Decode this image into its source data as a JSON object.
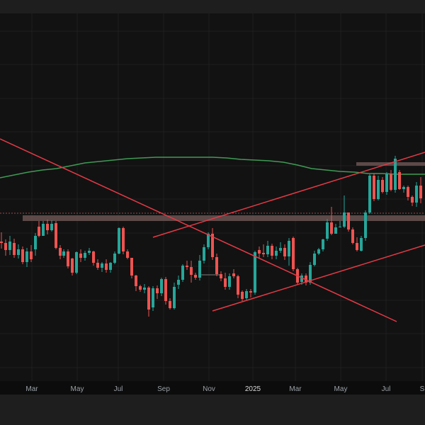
{
  "colors": {
    "background": "#121212",
    "grid": "#1f1f1f",
    "up_candle": "#26a69a",
    "down_candle": "#ef5350",
    "trendline": "#e53945",
    "moving_average": "#3f9a55",
    "zone": "#6a5352"
  },
  "chart_data": {
    "type": "candlestick",
    "x_axis_labels": [
      "Mar",
      "May",
      "Jul",
      "Sep",
      "Nov",
      "2025",
      "Mar",
      "May",
      "Jul",
      "S"
    ],
    "y_axis_labels": [],
    "grid": true,
    "legend": "none",
    "price_range": [
      0,
      560
    ],
    "x_range": [
      0,
      600
    ],
    "candles": [
      [
        2,
        341,
        343,
        328,
        351
      ],
      [
        8,
        343,
        353,
        338,
        361
      ],
      [
        14,
        353,
        341,
        333,
        360
      ],
      [
        20,
        343,
        360,
        337,
        364
      ],
      [
        26,
        360,
        352,
        345,
        365
      ],
      [
        32,
        352,
        370,
        348,
        373
      ],
      [
        38,
        370,
        355,
        350,
        377
      ],
      [
        44,
        355,
        366,
        346,
        370
      ],
      [
        50,
        352,
        333,
        329,
        361
      ],
      [
        55,
        320,
        333,
        312,
        335
      ],
      [
        61,
        333,
        316,
        312,
        333
      ],
      [
        67,
        316,
        325,
        310,
        331
      ],
      [
        73,
        325,
        316,
        311,
        327
      ],
      [
        79,
        315,
        350,
        312,
        352
      ],
      [
        85,
        350,
        361,
        346,
        366
      ],
      [
        90,
        361,
        355,
        352,
        364
      ],
      [
        96,
        355,
        376,
        352,
        379
      ],
      [
        102,
        365,
        385,
        364,
        389
      ],
      [
        108,
        385,
        356,
        355,
        387
      ],
      [
        114,
        358,
        364,
        352,
        370
      ],
      [
        120,
        364,
        357,
        354,
        368
      ],
      [
        126,
        357,
        354,
        350,
        360
      ],
      [
        132,
        355,
        371,
        354,
        375
      ],
      [
        138,
        371,
        378,
        366,
        381
      ],
      [
        144,
        378,
        372,
        370,
        384
      ],
      [
        150,
        372,
        381,
        366,
        385
      ],
      [
        156,
        381,
        371,
        370,
        385
      ],
      [
        162,
        371,
        358,
        355,
        373
      ],
      [
        168,
        358,
        322,
        321,
        359
      ],
      [
        174,
        322,
        355,
        320,
        359
      ],
      [
        180,
        355,
        364,
        352,
        366
      ],
      [
        186,
        364,
        389,
        364,
        393
      ],
      [
        192,
        389,
        404,
        388,
        411
      ],
      [
        198,
        404,
        409,
        402,
        412
      ],
      [
        204,
        409,
        406,
        401,
        414
      ],
      [
        210,
        406,
        437,
        404,
        447
      ],
      [
        216,
        434,
        407,
        404,
        439
      ],
      [
        222,
        407,
        414,
        403,
        422
      ],
      [
        228,
        414,
        394,
        392,
        418
      ],
      [
        234,
        394,
        425,
        391,
        430
      ],
      [
        240,
        425,
        435,
        421,
        437
      ],
      [
        246,
        435,
        405,
        399,
        437
      ],
      [
        252,
        402,
        395,
        389,
        408
      ],
      [
        258,
        395,
        375,
        373,
        398
      ],
      [
        264,
        375,
        377,
        368,
        381
      ],
      [
        270,
        377,
        388,
        368,
        399
      ],
      [
        276,
        388,
        392,
        385,
        395
      ],
      [
        282,
        392,
        368,
        360,
        396
      ],
      [
        288,
        368,
        349,
        345,
        372
      ],
      [
        294,
        349,
        330,
        328,
        352
      ],
      [
        300,
        330,
        363,
        322,
        367
      ],
      [
        306,
        363,
        387,
        358,
        390
      ],
      [
        312,
        387,
        393,
        383,
        397
      ],
      [
        318,
        393,
        405,
        385,
        409
      ],
      [
        324,
        405,
        390,
        386,
        409
      ],
      [
        330,
        386,
        390,
        380,
        393
      ],
      [
        336,
        390,
        416,
        388,
        421
      ],
      [
        342,
        412,
        422,
        410,
        425
      ],
      [
        348,
        421,
        411,
        408,
        424
      ],
      [
        354,
        411,
        413,
        408,
        420
      ],
      [
        360,
        413,
        356,
        354,
        416
      ],
      [
        366,
        353,
        358,
        348,
        364
      ],
      [
        372,
        357,
        359,
        345,
        363
      ],
      [
        378,
        359,
        347,
        340,
        363
      ],
      [
        384,
        347,
        361,
        344,
        366
      ],
      [
        390,
        361,
        354,
        348,
        366
      ],
      [
        396,
        354,
        350,
        342,
        357
      ],
      [
        402,
        350,
        362,
        345,
        367
      ],
      [
        408,
        362,
        340,
        336,
        375
      ],
      [
        414,
        336,
        380,
        334,
        383
      ],
      [
        420,
        380,
        399,
        378,
        402
      ],
      [
        426,
        398,
        389,
        386,
        402
      ],
      [
        432,
        389,
        399,
        386,
        403
      ],
      [
        438,
        399,
        374,
        370,
        402
      ],
      [
        444,
        374,
        358,
        354,
        376
      ],
      [
        450,
        358,
        352,
        350,
        360
      ],
      [
        456,
        352,
        338,
        337,
        355
      ],
      [
        462,
        337,
        314,
        309,
        340
      ],
      [
        468,
        314,
        330,
        292,
        332
      ],
      [
        474,
        330,
        321,
        316,
        330
      ],
      [
        480,
        321,
        320,
        312,
        321
      ],
      [
        486,
        320,
        300,
        276,
        322
      ],
      [
        492,
        300,
        324,
        300,
        327
      ],
      [
        498,
        324,
        343,
        321,
        345
      ],
      [
        504,
        343,
        353,
        335,
        355
      ],
      [
        510,
        354,
        336,
        333,
        355
      ],
      [
        516,
        336,
        300,
        297,
        340
      ],
      [
        522,
        300,
        248,
        246,
        302
      ],
      [
        528,
        248,
        281,
        245,
        284
      ],
      [
        534,
        281,
        254,
        248,
        283
      ],
      [
        540,
        254,
        271,
        250,
        273
      ],
      [
        546,
        271,
        246,
        243,
        275
      ],
      [
        552,
        246,
        268,
        240,
        270
      ],
      [
        558,
        268,
        224,
        220,
        272
      ],
      [
        564,
        243,
        267,
        240,
        268
      ],
      [
        570,
        267,
        264,
        262,
        272
      ],
      [
        576,
        264,
        278,
        262,
        283
      ],
      [
        582,
        278,
        286,
        276,
        291
      ],
      [
        588,
        286,
        262,
        257,
        292
      ],
      [
        594,
        262,
        280,
        250,
        287
      ]
    ],
    "moving_average": [
      [
        0,
        251
      ],
      [
        20,
        247
      ],
      [
        40,
        243
      ],
      [
        60,
        240
      ],
      [
        80,
        238
      ],
      [
        100,
        234
      ],
      [
        120,
        230
      ],
      [
        140,
        228
      ],
      [
        160,
        226
      ],
      [
        180,
        224
      ],
      [
        200,
        223
      ],
      [
        220,
        222
      ],
      [
        240,
        222
      ],
      [
        260,
        222
      ],
      [
        280,
        222
      ],
      [
        300,
        222
      ],
      [
        320,
        223
      ],
      [
        340,
        225
      ],
      [
        360,
        226
      ],
      [
        380,
        227
      ],
      [
        400,
        229
      ],
      [
        420,
        233
      ],
      [
        440,
        238
      ],
      [
        460,
        240
      ],
      [
        480,
        242
      ],
      [
        500,
        243
      ],
      [
        520,
        245
      ],
      [
        540,
        245
      ],
      [
        560,
        246
      ],
      [
        580,
        246
      ],
      [
        600,
        246
      ]
    ],
    "trendlines": [
      {
        "name": "downtrend-line",
        "from": [
          0,
          196
        ],
        "to": [
          560,
          454
        ]
      },
      {
        "name": "uptrend-line-upper",
        "from": [
          216,
          335
        ],
        "to": [
          600,
          215
        ]
      },
      {
        "name": "uptrend-line-lower",
        "from": [
          300,
          439
        ],
        "to": [
          600,
          346
        ]
      }
    ],
    "zones": [
      {
        "name": "resistance-zone-mid",
        "x1": 32,
        "x2": 600,
        "y1": 304,
        "y2": 312
      },
      {
        "name": "resistance-zone-upper",
        "x1": 503,
        "x2": 600,
        "y1": 229,
        "y2": 234
      }
    ],
    "support_line": {
      "x1": 0,
      "x2": 600,
      "y": 301
    },
    "short_level_line": {
      "x1": 282,
      "x2": 312,
      "y": 388
    }
  }
}
